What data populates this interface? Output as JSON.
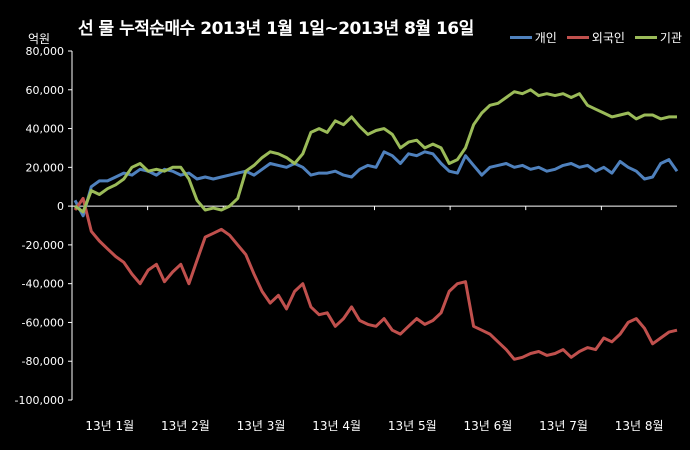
{
  "chart_data": {
    "type": "line",
    "title": "선 물 누적순매수 2013년 1월 1일~2013년 8월 16일",
    "ylabel": "억원",
    "ylim": [
      -100000,
      80000
    ],
    "yticks": [
      "80,000",
      "60,000",
      "40,000",
      "20,000",
      "0",
      "-20,000",
      "-40,000",
      "-60,000",
      "-80,000",
      "-100,000"
    ],
    "months": [
      "13년 1월",
      "13년 2월",
      "13년 3월",
      "13년 4월",
      "13년 5월",
      "13년 6월",
      "13년 7월",
      "13년 8월"
    ],
    "legend_position": "top-right",
    "series": [
      {
        "name": "개인",
        "color": "#4f81bd",
        "values": [
          3000,
          -5000,
          10000,
          13000,
          13000,
          15000,
          17000,
          16000,
          19000,
          18000,
          16000,
          19000,
          18000,
          16000,
          17000,
          14000,
          15000,
          14000,
          15000,
          16000,
          17000,
          18000,
          16000,
          19000,
          22000,
          21000,
          20000,
          22000,
          20000,
          16000,
          17000,
          17000,
          18000,
          16000,
          15000,
          19000,
          21000,
          20000,
          28000,
          26000,
          22000,
          27000,
          26000,
          28000,
          27000,
          22000,
          18000,
          17000,
          26000,
          21000,
          16000,
          20000,
          21000,
          22000,
          20000,
          21000,
          19000,
          20000,
          18000,
          19000,
          21000,
          22000,
          20000,
          21000,
          18000,
          20000,
          17000,
          23000,
          20000,
          18000,
          14000,
          15000,
          22000,
          24000,
          18000
        ]
      },
      {
        "name": "외국인",
        "color": "#c0504d",
        "values": [
          -2000,
          4000,
          -13000,
          -18000,
          -22000,
          -26000,
          -29000,
          -35000,
          -40000,
          -33000,
          -30000,
          -39000,
          -34000,
          -30000,
          -40000,
          -28000,
          -16000,
          -14000,
          -12000,
          -15000,
          -20000,
          -25000,
          -35000,
          -44000,
          -50000,
          -46000,
          -53000,
          -44000,
          -40000,
          -52000,
          -56000,
          -55000,
          -62000,
          -58000,
          -52000,
          -59000,
          -61000,
          -62000,
          -58000,
          -64000,
          -66000,
          -62000,
          -58000,
          -61000,
          -59000,
          -55000,
          -44000,
          -40000,
          -39000,
          -62000,
          -64000,
          -66000,
          -70000,
          -74000,
          -79000,
          -78000,
          -76000,
          -75000,
          -77000,
          -76000,
          -74000,
          -78000,
          -75000,
          -73000,
          -74000,
          -68000,
          -70000,
          -66000,
          -60000,
          -58000,
          -63000,
          -71000,
          -68000,
          -65000,
          -64000
        ]
      },
      {
        "name": "기관",
        "color": "#9bbb59",
        "values": [
          0,
          -3000,
          8000,
          6000,
          9000,
          11000,
          14000,
          20000,
          22000,
          18000,
          19000,
          18000,
          20000,
          20000,
          14000,
          3000,
          -2000,
          -1000,
          -2000,
          0,
          4000,
          18000,
          21000,
          25000,
          28000,
          27000,
          25000,
          22000,
          27000,
          38000,
          40000,
          38000,
          44000,
          42000,
          46000,
          41000,
          37000,
          39000,
          40000,
          37000,
          30000,
          33000,
          34000,
          30000,
          32000,
          30000,
          22000,
          24000,
          30000,
          42000,
          48000,
          52000,
          53000,
          56000,
          59000,
          58000,
          60000,
          57000,
          58000,
          57000,
          58000,
          56000,
          58000,
          52000,
          50000,
          48000,
          46000,
          47000,
          48000,
          45000,
          47000,
          47000,
          45000,
          46000,
          46000
        ]
      }
    ]
  }
}
